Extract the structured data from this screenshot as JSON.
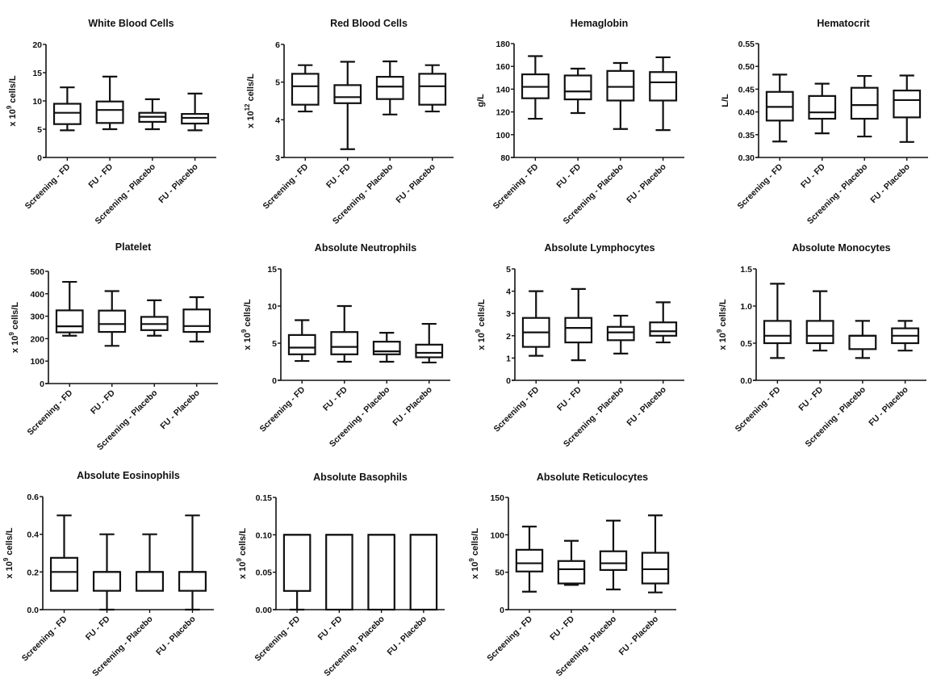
{
  "chart_data": [
    {
      "type": "boxplot",
      "title": "White Blood Cells",
      "ylabel": "x 10^9 cells/L",
      "ylabel_base": "x 10",
      "ylabel_exp": "9",
      "ylabel_unit": " cells/L",
      "ylim": [
        0,
        20
      ],
      "yticks": [
        0,
        5,
        10,
        15,
        20
      ],
      "ytick_labels": [
        "0",
        "5",
        "10",
        "15",
        "20"
      ],
      "categories": [
        "Screening - FD",
        "FU - FD",
        "Screening - Placebo",
        "FU - Placebo"
      ],
      "boxes": [
        {
          "min": 4.8,
          "q1": 5.9,
          "median": 7.9,
          "q3": 9.5,
          "max": 12.4
        },
        {
          "min": 5.0,
          "q1": 6.1,
          "median": 8.4,
          "q3": 9.9,
          "max": 14.3
        },
        {
          "min": 5.0,
          "q1": 6.3,
          "median": 7.2,
          "q3": 7.9,
          "max": 10.3
        },
        {
          "min": 4.8,
          "q1": 6.0,
          "median": 7.0,
          "q3": 7.7,
          "max": 11.3
        }
      ]
    },
    {
      "type": "boxplot",
      "title": "Red Blood Cells",
      "ylabel": "x 10^12 cells/L",
      "ylabel_base": "x 10",
      "ylabel_exp": "12",
      "ylabel_unit": " cells/L",
      "ylim": [
        3,
        6
      ],
      "yticks": [
        3,
        4,
        5,
        6
      ],
      "ytick_labels": [
        "3",
        "4",
        "5",
        "6"
      ],
      "categories": [
        "Screening - FD",
        "FU - FD",
        "Screening - Placebo",
        "FU - Placebo"
      ],
      "boxes": [
        {
          "min": 4.22,
          "q1": 4.4,
          "median": 4.89,
          "q3": 5.22,
          "max": 5.45
        },
        {
          "min": 3.22,
          "q1": 4.44,
          "median": 4.6,
          "q3": 4.92,
          "max": 5.54
        },
        {
          "min": 4.14,
          "q1": 4.55,
          "median": 4.88,
          "q3": 5.14,
          "max": 5.55
        },
        {
          "min": 4.22,
          "q1": 4.4,
          "median": 4.89,
          "q3": 5.22,
          "max": 5.45
        }
      ]
    },
    {
      "type": "boxplot",
      "title": "Hemaglobin",
      "ylabel": "g/L",
      "ylabel_base": "g/L",
      "ylabel_exp": "",
      "ylabel_unit": "",
      "ylim": [
        80,
        180
      ],
      "yticks": [
        80,
        100,
        120,
        140,
        160,
        180
      ],
      "ytick_labels": [
        "80",
        "100",
        "120",
        "140",
        "160",
        "180"
      ],
      "categories": [
        "Screening - FD",
        "FU - FD",
        "Screening - Placebo",
        "FU - Placebo"
      ],
      "boxes": [
        {
          "min": 114,
          "q1": 132,
          "median": 142,
          "q3": 153,
          "max": 169
        },
        {
          "min": 119,
          "q1": 131,
          "median": 138,
          "q3": 152,
          "max": 158
        },
        {
          "min": 105,
          "q1": 130,
          "median": 142,
          "q3": 156,
          "max": 163
        },
        {
          "min": 104,
          "q1": 130,
          "median": 146,
          "q3": 155,
          "max": 168
        }
      ]
    },
    {
      "type": "boxplot",
      "title": "Hematocrit",
      "ylabel": "L/L",
      "ylabel_base": "L/L",
      "ylabel_exp": "",
      "ylabel_unit": "",
      "ylim": [
        0.3,
        0.55
      ],
      "yticks": [
        0.3,
        0.35,
        0.4,
        0.45,
        0.5,
        0.55
      ],
      "ytick_labels": [
        "0.30",
        "0.35",
        "0.40",
        "0.45",
        "0.50",
        "0.55"
      ],
      "categories": [
        "Screening - FD",
        "FU - FD",
        "Screening - Placebo",
        "FU - Placebo"
      ],
      "boxes": [
        {
          "min": 0.335,
          "q1": 0.381,
          "median": 0.411,
          "q3": 0.444,
          "max": 0.482
        },
        {
          "min": 0.353,
          "q1": 0.385,
          "median": 0.399,
          "q3": 0.435,
          "max": 0.462
        },
        {
          "min": 0.346,
          "q1": 0.385,
          "median": 0.415,
          "q3": 0.453,
          "max": 0.479
        },
        {
          "min": 0.334,
          "q1": 0.388,
          "median": 0.426,
          "q3": 0.447,
          "max": 0.48
        }
      ]
    },
    {
      "type": "boxplot",
      "title": "Platelet",
      "ylabel": "x 10^9 cells/L",
      "ylabel_base": "x 10",
      "ylabel_exp": "9",
      "ylabel_unit": " cells/L",
      "ylim": [
        0,
        500
      ],
      "yticks": [
        0,
        100,
        200,
        300,
        400,
        500
      ],
      "ytick_labels": [
        "0",
        "100",
        "200",
        "300",
        "400",
        "500"
      ],
      "categories": [
        "Screening - FD",
        "FU - FD",
        "Screening - Placebo",
        "FU - Placebo"
      ],
      "boxes": [
        {
          "min": 213,
          "q1": 228,
          "median": 255,
          "q3": 326,
          "max": 453
        },
        {
          "min": 168,
          "q1": 230,
          "median": 265,
          "q3": 325,
          "max": 412
        },
        {
          "min": 213,
          "q1": 238,
          "median": 265,
          "q3": 297,
          "max": 371
        },
        {
          "min": 187,
          "q1": 230,
          "median": 256,
          "q3": 330,
          "max": 385
        }
      ]
    },
    {
      "type": "boxplot",
      "title": "Absolute Neutrophils",
      "ylabel": "x 10^9 cells/L",
      "ylabel_base": "x 10",
      "ylabel_exp": "9",
      "ylabel_unit": " cells/L",
      "ylim": [
        0,
        15
      ],
      "yticks": [
        0,
        5,
        10,
        15
      ],
      "ytick_labels": [
        "0",
        "5",
        "10",
        "15"
      ],
      "categories": [
        "Screening - FD",
        "FU - FD",
        "Screening - Placebo",
        "FU - Placebo"
      ],
      "boxes": [
        {
          "min": 2.6,
          "q1": 3.5,
          "median": 4.4,
          "q3": 6.1,
          "max": 8.1
        },
        {
          "min": 2.5,
          "q1": 3.5,
          "median": 4.5,
          "q3": 6.5,
          "max": 10.0
        },
        {
          "min": 2.5,
          "q1": 3.5,
          "median": 3.9,
          "q3": 5.2,
          "max": 6.4
        },
        {
          "min": 2.4,
          "q1": 3.1,
          "median": 3.7,
          "q3": 4.8,
          "max": 7.6
        }
      ]
    },
    {
      "type": "boxplot",
      "title": "Absolute Lymphocytes",
      "ylabel": "x 10^9 cells/L",
      "ylabel_base": "x 10",
      "ylabel_exp": "9",
      "ylabel_unit": " cells/L",
      "ylim": [
        0,
        5
      ],
      "yticks": [
        0,
        1,
        2,
        3,
        4,
        5
      ],
      "ytick_labels": [
        "0",
        "1",
        "2",
        "3",
        "4",
        "5"
      ],
      "categories": [
        "Screening - FD",
        "FU - FD",
        "Screening - Placebo",
        "FU - Placebo"
      ],
      "boxes": [
        {
          "min": 1.1,
          "q1": 1.5,
          "median": 2.15,
          "q3": 2.8,
          "max": 4.0
        },
        {
          "min": 0.9,
          "q1": 1.7,
          "median": 2.35,
          "q3": 2.8,
          "max": 4.1
        },
        {
          "min": 1.2,
          "q1": 1.8,
          "median": 2.15,
          "q3": 2.4,
          "max": 2.9
        },
        {
          "min": 1.7,
          "q1": 2.0,
          "median": 2.2,
          "q3": 2.6,
          "max": 3.5
        }
      ]
    },
    {
      "type": "boxplot",
      "title": "Absolute Monocytes",
      "ylabel": "x 10^9 cells/L",
      "ylabel_base": "x 10",
      "ylabel_exp": "9",
      "ylabel_unit": " cells/L",
      "ylim": [
        0.0,
        1.5
      ],
      "yticks": [
        0.0,
        0.5,
        1.0,
        1.5
      ],
      "ytick_labels": [
        "0.0",
        "0.5",
        "1.0",
        "1.5"
      ],
      "categories": [
        "Screening - FD",
        "FU - FD",
        "Screening - Placebo",
        "FU - Placebo"
      ],
      "boxes": [
        {
          "min": 0.3,
          "q1": 0.5,
          "median": 0.6,
          "q3": 0.8,
          "max": 1.3
        },
        {
          "min": 0.4,
          "q1": 0.5,
          "median": 0.6,
          "q3": 0.8,
          "max": 1.2
        },
        {
          "min": 0.3,
          "q1": 0.42,
          "median": 0.6,
          "q3": 0.6,
          "max": 0.8
        },
        {
          "min": 0.4,
          "q1": 0.5,
          "median": 0.6,
          "q3": 0.7,
          "max": 0.8
        }
      ]
    },
    {
      "type": "boxplot",
      "title": "Absolute Eosinophils",
      "ylabel": "x 10^9 cells/L",
      "ylabel_base": "x 10",
      "ylabel_exp": "9",
      "ylabel_unit": " cells/L",
      "ylim": [
        0.0,
        0.6
      ],
      "yticks": [
        0.0,
        0.2,
        0.4,
        0.6
      ],
      "ytick_labels": [
        "0.0",
        "0.2",
        "0.4",
        "0.6"
      ],
      "categories": [
        "Screening - FD",
        "FU - FD",
        "Screening - Placebo",
        "FU - Placebo"
      ],
      "boxes": [
        {
          "min": 0.1,
          "q1": 0.1,
          "median": 0.2,
          "q3": 0.275,
          "max": 0.5
        },
        {
          "min": 0.0,
          "q1": 0.1,
          "median": 0.2,
          "q3": 0.2,
          "max": 0.4
        },
        {
          "min": 0.1,
          "q1": 0.1,
          "median": 0.2,
          "q3": 0.2,
          "max": 0.4
        },
        {
          "min": 0.0,
          "q1": 0.1,
          "median": 0.2,
          "q3": 0.2,
          "max": 0.5
        }
      ]
    },
    {
      "type": "boxplot",
      "title": "Absolute Basophils",
      "ylabel": "x 10^9 cells/L",
      "ylabel_base": "x 10",
      "ylabel_exp": "9",
      "ylabel_unit": " cells/L",
      "ylim": [
        0.0,
        0.15
      ],
      "yticks": [
        0.0,
        0.05,
        0.1,
        0.15
      ],
      "ytick_labels": [
        "0.00",
        "0.05",
        "0.10",
        "0.15"
      ],
      "categories": [
        "Screening - FD",
        "FU - FD",
        "Screening - Placebo",
        "FU - Placebo"
      ],
      "boxes": [
        {
          "min": 0.0,
          "q1": 0.025,
          "median": 0.1,
          "q3": 0.1,
          "max": 0.1
        },
        {
          "min": 0.0,
          "q1": 0.0,
          "median": 0.1,
          "q3": 0.1,
          "max": 0.1
        },
        {
          "min": 0.0,
          "q1": 0.0,
          "median": 0.1,
          "q3": 0.1,
          "max": 0.1
        },
        {
          "min": 0.0,
          "q1": 0.0,
          "median": 0.1,
          "q3": 0.1,
          "max": 0.1
        }
      ]
    },
    {
      "type": "boxplot",
      "title": "Absolute Reticulocytes",
      "ylabel": "x 10^9 cells/L",
      "ylabel_base": "x 10",
      "ylabel_exp": "9",
      "ylabel_unit": " cells/L",
      "ylim": [
        0,
        150
      ],
      "yticks": [
        0,
        50,
        100,
        150
      ],
      "ytick_labels": [
        "0",
        "50",
        "100",
        "150"
      ],
      "categories": [
        "Screening - FD",
        "FU - FD",
        "Screening - Placebo",
        "FU - Placebo"
      ],
      "boxes": [
        {
          "min": 24,
          "q1": 51,
          "median": 62,
          "q3": 80,
          "max": 111
        },
        {
          "min": 33,
          "q1": 35,
          "median": 54,
          "q3": 65,
          "max": 92
        },
        {
          "min": 27,
          "q1": 53,
          "median": 62,
          "q3": 78,
          "max": 119
        },
        {
          "min": 23,
          "q1": 35,
          "median": 54,
          "q3": 76,
          "max": 126
        }
      ]
    }
  ]
}
